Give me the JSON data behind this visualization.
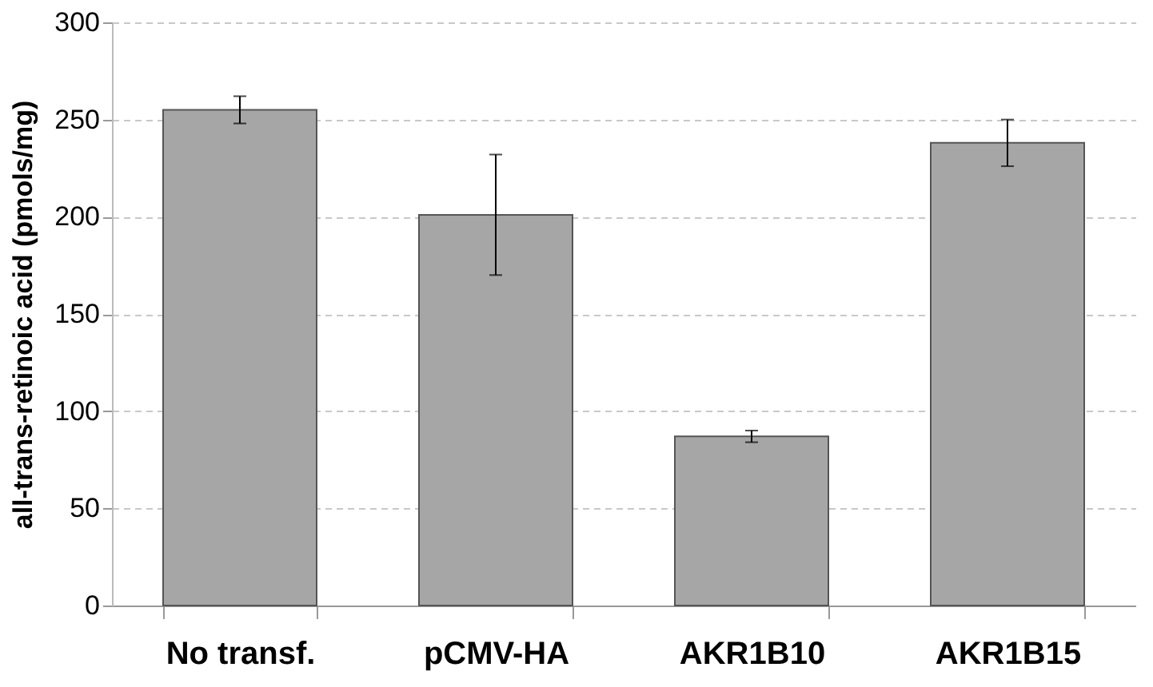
{
  "chart_data": {
    "type": "bar",
    "categories": [
      "No transf.",
      "pCMV-HA",
      "AKR1B10",
      "AKR1B15"
    ],
    "values": [
      255,
      201,
      87,
      238
    ],
    "errors": [
      7,
      31,
      3,
      12
    ],
    "color": "#a6a6a6",
    "ylabel": "all-trans-retinoic acid (pmols/mg)",
    "ylim": [
      0,
      300
    ],
    "yticks": [
      0,
      50,
      100,
      150,
      200,
      250,
      300
    ],
    "grid": "y"
  }
}
